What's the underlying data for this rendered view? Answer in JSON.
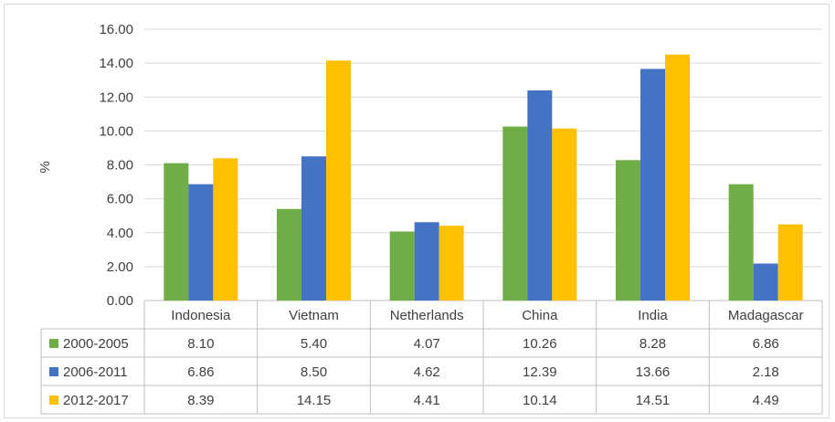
{
  "chart_data": {
    "type": "bar",
    "title": "",
    "ylabel": "%",
    "xlabel": "",
    "ylim": [
      0,
      16
    ],
    "ytick_step": 2,
    "ytick_format": "0.00",
    "grid": true,
    "legend": "data-table",
    "categories": [
      "Indonesia",
      "Vietnam",
      "Netherlands",
      "China",
      "India",
      "Madagascar"
    ],
    "series": [
      {
        "name": "2000-2005",
        "color": "#70ad47",
        "values": [
          8.1,
          5.4,
          4.07,
          10.26,
          8.28,
          6.86
        ],
        "labels": [
          "8.10",
          "5.40",
          "4.07",
          "10.26",
          "8.28",
          "6.86"
        ]
      },
      {
        "name": "2006-2011",
        "color": "#4472c4",
        "values": [
          6.86,
          8.5,
          4.62,
          12.39,
          13.66,
          2.18
        ],
        "labels": [
          "6.86",
          "8.50",
          "4.62",
          "12.39",
          "13.66",
          "2.18"
        ]
      },
      {
        "name": "2012-2017",
        "color": "#ffc000",
        "values": [
          8.39,
          14.15,
          4.41,
          10.14,
          14.51,
          4.49
        ],
        "labels": [
          "8.39",
          "14.15",
          "4.41",
          "10.14",
          "14.51",
          "4.49"
        ]
      }
    ]
  }
}
